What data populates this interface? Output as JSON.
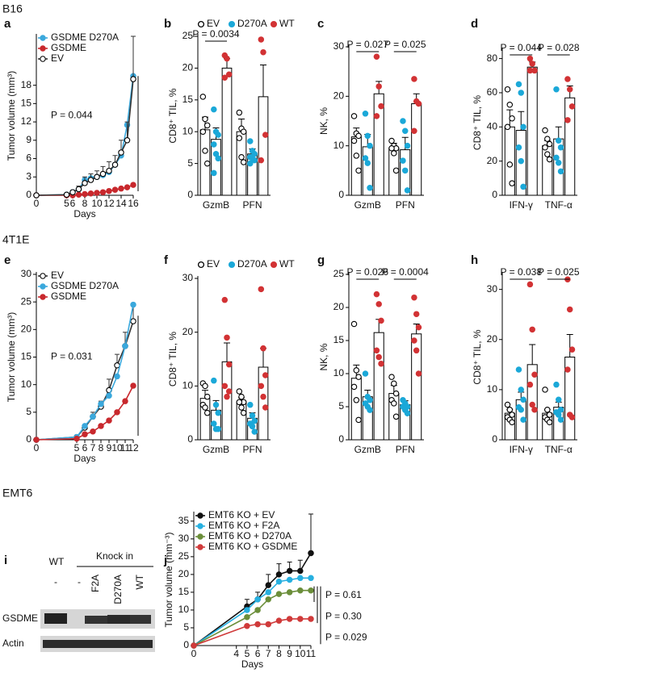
{
  "sections": [
    "B16",
    "4T1E",
    "EMT6"
  ],
  "panel_labels": [
    "a",
    "b",
    "c",
    "d",
    "e",
    "f",
    "g",
    "h",
    "i",
    "j"
  ],
  "blot": {
    "group_labels": [
      "WT",
      "Knock in"
    ],
    "lanes": [
      "-",
      "-",
      "F2A",
      "D270A",
      "WT"
    ],
    "rows": [
      "GSDME",
      "Actin"
    ]
  },
  "chart_data": [
    {
      "type": "line",
      "ylabel": "Tumor volume (mm³)",
      "xlabel": "Days",
      "x": [
        0,
        5,
        6,
        7,
        8,
        9,
        10,
        11,
        12,
        13,
        14,
        15,
        16
      ],
      "xlim": [
        0,
        16
      ],
      "xticks": [
        0,
        5,
        6,
        8,
        10,
        12,
        14,
        16
      ],
      "ylim": [
        0,
        26
      ],
      "yticks": [
        0,
        3,
        6,
        9,
        12,
        15,
        18
      ],
      "legend": "top-left",
      "series": [
        {
          "name": "GSDME D270A",
          "color": "#3aa8dc",
          "filled": true,
          "values": [
            0,
            0.1,
            0.5,
            1,
            2.5,
            2.8,
            3,
            3.3,
            3.8,
            5,
            6.5,
            11.5,
            19.5
          ]
        },
        {
          "name": "GSDME",
          "color": "#c8282d",
          "filled": true,
          "values": [
            0,
            0,
            0,
            0.1,
            0.2,
            0.3,
            0.4,
            0.5,
            0.7,
            0.9,
            1.1,
            1.3,
            1.7
          ]
        },
        {
          "name": "EV",
          "color": "#333333",
          "filled": false,
          "values": [
            0,
            0.1,
            0.5,
            1,
            2,
            2.5,
            3,
            3.5,
            4,
            5,
            7,
            9,
            19
          ],
          "errors": [
            0,
            0.1,
            0.3,
            0.5,
            1,
            1,
            1,
            1.2,
            1.5,
            1.5,
            2,
            3,
            7
          ]
        }
      ],
      "annotations": [
        "P = 0.044"
      ]
    },
    {
      "type": "bar",
      "ylabel": "CD8⁺ TIL, %",
      "categories": [
        "GzmB",
        "PFN"
      ],
      "ylim": [
        0,
        25
      ],
      "yticks": [
        0,
        5,
        10,
        15,
        20,
        25
      ],
      "legend": "top",
      "series": [
        {
          "name": "EV",
          "color": "#000000",
          "filled": false,
          "values": [
            10.3,
            10
          ],
          "errors": [
            2,
            2
          ],
          "points": [
            [
              15.5,
              12,
              11,
              10,
              7,
              5
            ],
            [
              13,
              10.5,
              10,
              9,
              6,
              5.2
            ]
          ]
        },
        {
          "name": "D270A",
          "color": "#1ba8d8",
          "filled": true,
          "values": [
            8.8,
            6.5
          ],
          "errors": [
            1.8,
            0.8
          ],
          "points": [
            [
              13.5,
              10,
              9.5,
              8,
              6.5,
              5.8,
              3.5
            ],
            [
              8.5,
              7,
              6.5,
              6,
              5.8,
              5.5,
              5
            ]
          ]
        },
        {
          "name": "WT",
          "color": "#d23234",
          "filled": true,
          "values": [
            20,
            15.5
          ],
          "errors": [
            1.5,
            5
          ],
          "points": [
            [
              22,
              21.5,
              19,
              18.5
            ],
            [
              24.5,
              22.5,
              9.5,
              5.5
            ]
          ]
        }
      ],
      "annotations": [
        "P = 0.0034"
      ]
    },
    {
      "type": "bar",
      "ylabel": "NK, %",
      "categories": [
        "GzmB",
        "PFN"
      ],
      "ylim": [
        0,
        30
      ],
      "yticks": [
        0,
        10,
        20,
        30
      ],
      "series": [
        {
          "color": "#000000",
          "filled": false,
          "values": [
            11.8,
            9.5
          ],
          "errors": [
            1.8,
            1
          ],
          "points": [
            [
              16,
              12.5,
              12,
              11,
              8,
              5
            ],
            [
              11,
              10,
              9.5,
              9.5,
              8.5,
              5
            ]
          ]
        },
        {
          "color": "#1ba8d8",
          "filled": true,
          "values": [
            9.8,
            9.2
          ],
          "errors": [
            2.5,
            2.5
          ],
          "points": [
            [
              16.5,
              12,
              10,
              7.5,
              6.5,
              1.5
            ],
            [
              15,
              13,
              10,
              7,
              5,
              1
            ]
          ]
        },
        {
          "color": "#d23234",
          "filled": true,
          "values": [
            20.5,
            18.5
          ],
          "errors": [
            2.5,
            2
          ],
          "points": [
            [
              28,
              22,
              18,
              16
            ],
            [
              23.5,
              19,
              18.5,
              13
            ]
          ]
        }
      ],
      "annotations": [
        "P = 0.027",
        "P = 0.025"
      ]
    },
    {
      "type": "bar",
      "ylabel": "CD8⁺ TIL, %",
      "categories": [
        "IFN-γ",
        "TNF-α"
      ],
      "ylim": [
        0,
        85
      ],
      "yticks": [
        0,
        20,
        40,
        60,
        80
      ],
      "series": [
        {
          "color": "#000000",
          "filled": false,
          "values": [
            40,
            29
          ],
          "errors": [
            10,
            3
          ],
          "points": [
            [
              62,
              53,
              45,
              40,
              18,
              7
            ],
            [
              38,
              33,
              30,
              28,
              24,
              21
            ]
          ]
        },
        {
          "color": "#1ba8d8",
          "filled": true,
          "values": [
            38,
            33
          ],
          "errors": [
            11,
            7
          ],
          "points": [
            [
              65,
              60,
              40,
              28,
              20,
              5
            ],
            [
              62,
              32,
              28,
              22,
              19,
              14
            ]
          ]
        },
        {
          "color": "#d23234",
          "filled": true,
          "values": [
            75,
            57
          ],
          "errors": [
            3,
            7
          ],
          "points": [
            [
              80,
              77,
              73,
              73
            ],
            [
              68,
              62,
              52,
              44
            ]
          ]
        }
      ],
      "annotations": [
        "P = 0.044",
        "P = 0.028"
      ]
    },
    {
      "type": "line",
      "ylabel": "Tumor volume (mm³)",
      "xlabel": "Days",
      "x": [
        0,
        5,
        6,
        7,
        8,
        9,
        10,
        11,
        12
      ],
      "xlim": [
        0,
        12
      ],
      "xticks": [
        0,
        5,
        6,
        7,
        8,
        9,
        10,
        11,
        12
      ],
      "ylim": [
        0,
        30
      ],
      "yticks": [
        0,
        5,
        10,
        15,
        20,
        25,
        30
      ],
      "legend": "top-left",
      "series": [
        {
          "name": "EV",
          "color": "#333333",
          "filled": false,
          "values": [
            0,
            0.5,
            2.2,
            4.2,
            6,
            9,
            13.5,
            17,
            21.5
          ],
          "errors": [
            0,
            0.3,
            0.5,
            0.8,
            1,
            2,
            2,
            2.5,
            3
          ]
        },
        {
          "name": "GSDME D270A",
          "color": "#3aa8dc",
          "filled": true,
          "values": [
            0,
            0.5,
            2.5,
            4.2,
            6.5,
            8,
            11.5,
            17,
            24.5
          ]
        },
        {
          "name": "GSDME",
          "color": "#c8282d",
          "filled": true,
          "values": [
            0,
            0.2,
            1,
            1.5,
            2.5,
            3.5,
            5,
            7,
            9.8
          ]
        }
      ],
      "annotations": [
        "P = 0.031"
      ]
    },
    {
      "type": "bar",
      "ylabel": "CD8⁺ TIL, %",
      "categories": [
        "GzmB",
        "PFN"
      ],
      "ylim": [
        0,
        30
      ],
      "yticks": [
        0,
        10,
        20,
        30
      ],
      "legend": "top",
      "series": [
        {
          "name": "EV",
          "color": "#000000",
          "filled": false,
          "values": [
            7.7,
            7
          ],
          "errors": [
            1.5,
            0.8
          ],
          "points": [
            [
              10.5,
              10,
              8,
              6.5,
              6,
              5
            ],
            [
              9,
              8,
              7,
              7,
              6,
              5
            ]
          ]
        },
        {
          "name": "D270A",
          "color": "#1ba8d8",
          "filled": true,
          "values": [
            5.5,
            4
          ],
          "errors": [
            1.8,
            1
          ],
          "points": [
            [
              11,
              6.5,
              5,
              3,
              2,
              2
            ],
            [
              6.5,
              4.5,
              3.5,
              3,
              2.5,
              1.5
            ]
          ]
        },
        {
          "name": "WT",
          "color": "#d23234",
          "filled": true,
          "values": [
            14.5,
            13.5
          ],
          "errors": [
            3.5,
            3.5
          ],
          "points": [
            [
              26,
              19,
              14,
              10,
              8,
              9
            ],
            [
              28,
              17,
              12,
              10,
              8,
              6
            ]
          ]
        }
      ]
    },
    {
      "type": "bar",
      "ylabel": "NK, %",
      "categories": [
        "GzmB",
        "PFN"
      ],
      "ylim": [
        0,
        25
      ],
      "yticks": [
        0,
        5,
        10,
        15,
        20,
        25
      ],
      "series": [
        {
          "color": "#000000",
          "filled": false,
          "values": [
            9.3,
            7
          ],
          "errors": [
            2,
            1.2
          ],
          "points": [
            [
              17.5,
              10.5,
              9.5,
              8,
              6,
              3
            ],
            [
              9.5,
              8.5,
              7,
              6,
              5.5,
              3.5
            ]
          ]
        },
        {
          "color": "#1ba8d8",
          "filled": true,
          "values": [
            6.5,
            5.3
          ],
          "errors": [
            1,
            0.6
          ],
          "points": [
            [
              10,
              6.5,
              6,
              5.5,
              5,
              4.5
            ],
            [
              6,
              5.5,
              5,
              5,
              4.5,
              4
            ]
          ]
        },
        {
          "color": "#d23234",
          "filled": true,
          "values": [
            16.2,
            16
          ],
          "errors": [
            2,
            1.5
          ],
          "points": [
            [
              22,
              20.5,
              18,
              13.5,
              12.5,
              11.5
            ],
            [
              21.5,
              19,
              17,
              15,
              13.5,
              10
            ]
          ]
        }
      ],
      "annotations": [
        "P = 0.026",
        "P = 0.0004"
      ]
    },
    {
      "type": "bar",
      "ylabel": "CD8⁺ TIL, %",
      "categories": [
        "IFN-γ",
        "TNF-α"
      ],
      "ylim": [
        0,
        33
      ],
      "yticks": [
        0,
        10,
        20,
        30
      ],
      "series": [
        {
          "color": "#000000",
          "filled": false,
          "values": [
            5.3,
            5.3
          ],
          "errors": [
            0.8,
            0.7
          ],
          "points": [
            [
              7,
              6,
              5,
              4.5,
              4,
              3.5
            ],
            [
              10,
              6,
              5,
              4.5,
              4,
              3.5
            ]
          ]
        },
        {
          "color": "#1ba8d8",
          "filled": true,
          "values": [
            8,
            6.5
          ],
          "errors": [
            1.5,
            1
          ],
          "points": [
            [
              14,
              10,
              8,
              6.5,
              6,
              4
            ],
            [
              11,
              8,
              6,
              5.5,
              5,
              4
            ]
          ]
        },
        {
          "color": "#d23234",
          "filled": true,
          "values": [
            15,
            16.5
          ],
          "errors": [
            4,
            4.5
          ],
          "points": [
            [
              31,
              22,
              13,
              11,
              7,
              6
            ],
            [
              32,
              26,
              18,
              14,
              5,
              4.5
            ]
          ]
        }
      ],
      "annotations": [
        "P = 0.038",
        "P = 0.025"
      ]
    },
    {
      "type": "line",
      "ylabel": "Tumor volume (mm⁻³)",
      "xlabel": "Days",
      "x": [
        0,
        5,
        6,
        7,
        8,
        9,
        10,
        11
      ],
      "xlim": [
        0,
        11
      ],
      "xticks": [
        0,
        4,
        5,
        6,
        7,
        8,
        9,
        10,
        11
      ],
      "ylim": [
        0,
        37
      ],
      "yticks": [
        0,
        5,
        10,
        15,
        20,
        25,
        30,
        35
      ],
      "legend": "top-left",
      "series": [
        {
          "name": "EMT6 KO + EV",
          "color": "#111111",
          "filled": true,
          "values": [
            0,
            11,
            13,
            17,
            20,
            21,
            21,
            26
          ],
          "errors": [
            0,
            2,
            2,
            3,
            3,
            2.5,
            3,
            11
          ]
        },
        {
          "name": "EMT6 KO + F2A",
          "color": "#27b0e0",
          "filled": true,
          "values": [
            0,
            10,
            13,
            15,
            18,
            18.5,
            19,
            19
          ]
        },
        {
          "name": "EMT6 KO + D270A",
          "color": "#6b8e3a",
          "filled": true,
          "values": [
            0,
            8,
            10,
            13,
            14.5,
            15,
            15.5,
            15.5
          ]
        },
        {
          "name": "EMT6 KO + GSDME",
          "color": "#d03a3a",
          "filled": true,
          "values": [
            0,
            5.5,
            6,
            6,
            7,
            7.5,
            7.5,
            7.5
          ]
        }
      ],
      "annotations": [
        "P = 0.61",
        "P = 0.30",
        "P = 0.029"
      ]
    }
  ]
}
